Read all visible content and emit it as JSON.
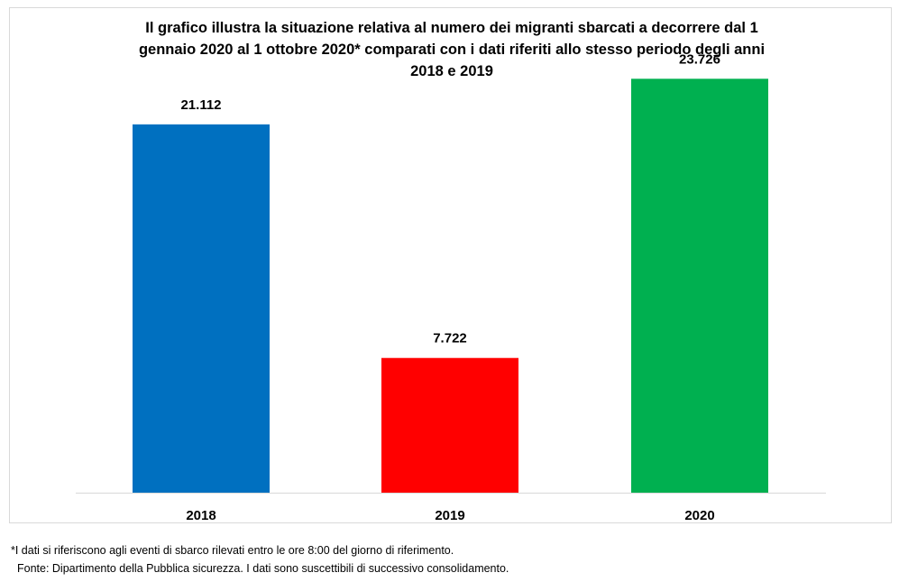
{
  "chart_data": {
    "type": "bar",
    "title_lines": [
      "Il grafico illustra la situazione relativa al numero dei migranti sbarcati a decorrere dal 1",
      "gennaio 2020 al 1 ottobre 2020* comparati con i dati riferiti allo stesso periodo degli anni",
      "2018  e 2019"
    ],
    "categories": [
      "2018",
      "2019",
      "2020"
    ],
    "values": [
      21112,
      7722,
      23726
    ],
    "value_labels": [
      "21.112",
      "7.722",
      "23.726"
    ],
    "colors": [
      "#0070c0",
      "#ff0000",
      "#00b050"
    ],
    "ylim": [
      0,
      27000
    ],
    "grid": false,
    "legend": false
  },
  "footnote": "*I dati si riferiscono agli eventi di sbarco rilevati entro le ore 8:00 del giorno di riferimento.",
  "source": "Fonte: Dipartimento della Pubblica sicurezza. I dati sono suscettibili di successivo consolidamento."
}
